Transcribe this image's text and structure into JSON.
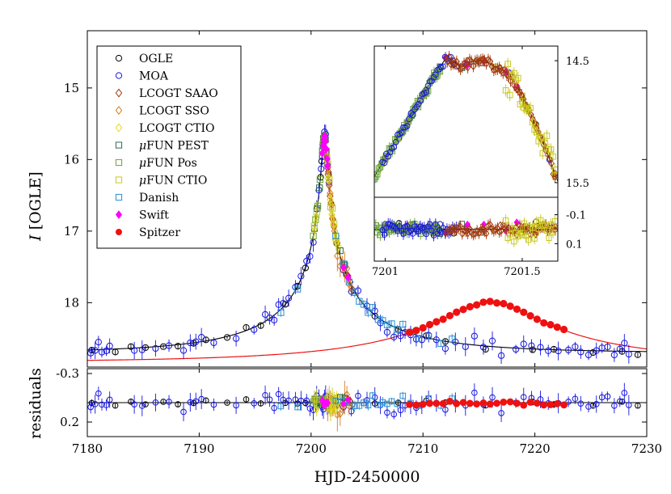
{
  "chart_data": {
    "type": "scatter",
    "main_panel": {
      "ylabel_symbol": "I",
      "ylabel_rest": " [OGLE]",
      "xlim": [
        7180,
        7230
      ],
      "ylim": [
        18.9,
        14.2
      ],
      "yticks": [
        "15",
        "16",
        "17",
        "18"
      ],
      "ytick_values": [
        15,
        16,
        17,
        18
      ],
      "xticks": [
        "7180",
        "7190",
        "7200",
        "7210",
        "7220",
        "7230"
      ],
      "xtick_values": [
        7180,
        7190,
        7200,
        7210,
        7220,
        7230
      ],
      "xlabel": "HJD-2450000"
    },
    "residual_panel": {
      "ylabel": "residuals",
      "ylim": [
        0.35,
        -0.35
      ],
      "yticks": [
        "-0.3",
        "0.2"
      ],
      "ytick_values": [
        -0.3,
        0.2
      ]
    },
    "inset": {
      "xlim": [
        7200.96,
        7201.63
      ],
      "ylim": [
        15.62,
        14.38
      ],
      "xticks": [
        "7201",
        "7201.5"
      ],
      "xtick_values": [
        7201,
        7201.5
      ],
      "yticks": [
        "14.5",
        "15.5"
      ],
      "ytick_values": [
        14.5,
        15.5
      ],
      "res_ylim": [
        0.22,
        -0.22
      ],
      "res_yticks": [
        "-0.1",
        "0.1"
      ],
      "res_ytick_values": [
        -0.1,
        0.1
      ]
    },
    "legend": [
      {
        "name": "OGLE",
        "marker": "circle",
        "color": "#000000"
      },
      {
        "name": "MOA",
        "marker": "circle",
        "color": "#1515e0"
      },
      {
        "name": "LCOGT SAAO",
        "marker": "diamond",
        "color": "#a0380c"
      },
      {
        "name": "LCOGT SSO",
        "marker": "diamond",
        "color": "#d97a1a"
      },
      {
        "name": "LCOGT CTIO",
        "marker": "diamond",
        "color": "#e8d81a"
      },
      {
        "name_mu": "μ",
        "name": "FUN PEST",
        "marker": "square",
        "color": "#2e6b4a"
      },
      {
        "name_mu": "μ",
        "name": "FUN Pos",
        "marker": "square",
        "color": "#6aa338"
      },
      {
        "name_mu": "μ",
        "name": "FUN CTIO",
        "marker": "square",
        "color": "#c8c81e"
      },
      {
        "name": "Danish",
        "marker": "square",
        "color": "#2a8fd0"
      },
      {
        "name": "Swift",
        "marker": "diamond-filled",
        "color": "#ff00ff"
      },
      {
        "name": "Spitzer",
        "marker": "circle-filled",
        "color": "#ee1111"
      }
    ],
    "model": {
      "t0": 7201.2,
      "u0": 0.018,
      "tE": 14.0,
      "I_base": 18.7,
      "flux_scale": 0.28
    },
    "spitzer_model": {
      "t0": 7216.0,
      "u0": 0.22,
      "tE": 19.0,
      "I_base": 18.83,
      "flux_scale": 0.32
    },
    "series": [
      {
        "name": "OGLE",
        "t": [
          7180.4,
          7182.5,
          7183.9,
          7185.2,
          7186.8,
          7188.1,
          7189.5,
          7190.6,
          7192.5,
          7194.2,
          7195.5,
          7197.7,
          7198.8,
          7199.5,
          7200.85,
          7200.95,
          7201.05,
          7201.15,
          7201.25,
          7201.55,
          7202.3,
          7203.2,
          7205.7,
          7207.8,
          7210.3,
          7212.0,
          7215.6,
          7219.8,
          7221.7,
          7225.2,
          7227.8,
          7229.2
        ]
      },
      {
        "name": "MOA",
        "t": [
          7180.3,
          7180.7,
          7181.0,
          7181.3,
          7181.7,
          7182.0,
          7184.2,
          7184.9,
          7186.1,
          7187.3,
          7188.6,
          7189.2,
          7189.7,
          7190.2,
          7191.3,
          7193.3,
          7194.9,
          7195.9,
          7196.3,
          7196.7,
          7197.1,
          7197.5,
          7198.0,
          7198.6,
          7199.1,
          7199.6,
          7199.9,
          7200.2,
          7200.5,
          7200.7,
          7200.9,
          7201.0,
          7201.1,
          7201.2,
          7201.3,
          7201.45,
          7201.6,
          7202.9,
          7203.6,
          7204.2,
          7205.0,
          7205.7,
          7206.2,
          7206.8,
          7207.4,
          7208.0,
          7208.4,
          7208.9,
          7209.4,
          7209.9,
          7210.5,
          7211.2,
          7212.0,
          7212.9,
          7213.8,
          7214.6,
          7215.4,
          7216.2,
          7217.0,
          7218.3,
          7219.0,
          7219.7,
          7220.5,
          7221.2,
          7222.1,
          7223.0,
          7223.6,
          7224.1,
          7224.8,
          7225.5,
          7226.0,
          7226.5,
          7227.1,
          7227.6,
          7228.0,
          7228.4
        ]
      },
      {
        "name": "LCOGT SAAO",
        "t": [
          7201.12,
          7201.18,
          7201.24,
          7201.3,
          7201.36,
          7201.42,
          7201.48,
          7201.55,
          7201.62,
          7201.7,
          7201.78,
          7201.85,
          7201.95,
          7202.05,
          7203.3,
          7203.5,
          7203.7
        ]
      },
      {
        "name": "LCOGT SSO",
        "t": [
          7201.5,
          7201.7,
          7201.9,
          7202.1,
          7202.35,
          7202.6,
          7202.8,
          7203.0,
          7203.2,
          7203.4
        ]
      },
      {
        "name": "LCOGT CTIO",
        "t": [
          7200.3,
          7200.5,
          7201.45,
          7201.55,
          7201.7,
          7201.85,
          7202.0,
          7202.15,
          7202.3,
          7202.45
        ]
      },
      {
        "name": "FUN PEST",
        "t": [
          7200.3,
          7200.55,
          7200.75,
          7201.02,
          7201.1,
          7201.2,
          7201.28,
          7201.35,
          7202.6,
          7203.0
        ]
      },
      {
        "name": "FUN Pos",
        "t": [
          7200.2,
          7200.4,
          7200.6,
          7200.8,
          7201.0,
          7201.06,
          7201.12,
          7201.18
        ]
      },
      {
        "name": "FUN CTIO",
        "t": [
          7200.3,
          7200.5,
          7201.4,
          7201.5,
          7201.62,
          7201.75,
          7201.9,
          7202.05,
          7202.25
        ]
      },
      {
        "name": "Danish",
        "t": [
          7197.3,
          7198.8,
          7202.2,
          7202.9,
          7203.4,
          7203.9,
          7204.3,
          7204.7,
          7205.1,
          7205.5,
          7206.0,
          7206.4,
          7206.8,
          7207.2,
          7207.7,
          7208.2,
          7208.9,
          7209.6,
          7210.5,
          7211.6,
          7212.6
        ]
      },
      {
        "name": "Swift",
        "t": [
          7201.0,
          7201.08,
          7201.14,
          7201.22,
          7201.3,
          7201.36,
          7201.44,
          7201.48,
          7202.9,
          7203.3
        ]
      },
      {
        "name": "Spitzer",
        "t": [
          7208.8,
          7209.4,
          7210.0,
          7210.6,
          7211.2,
          7211.8,
          7212.4,
          7213.0,
          7213.6,
          7214.2,
          7214.8,
          7215.4,
          7216.0,
          7216.6,
          7217.2,
          7217.8,
          7218.4,
          7219.0,
          7219.6,
          7220.2,
          7220.8,
          7221.4,
          7222.0,
          7222.6
        ]
      }
    ]
  }
}
